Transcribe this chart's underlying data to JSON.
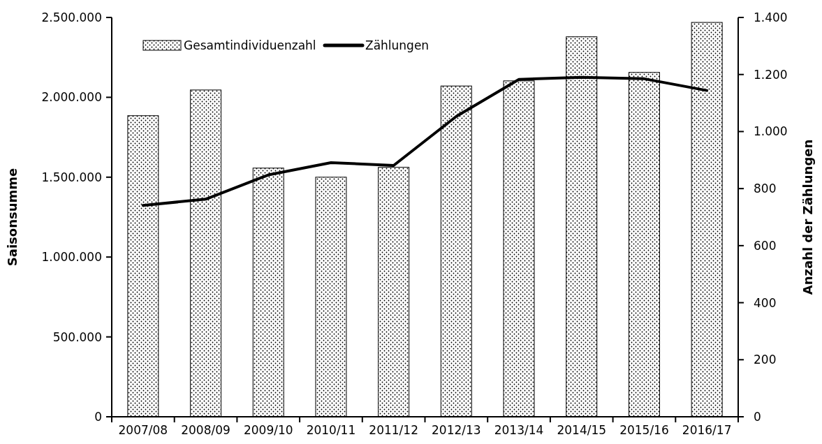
{
  "chart_data": {
    "type": "bar",
    "categories": [
      "2007/08",
      "2008/09",
      "2009/10",
      "2010/11",
      "2011/12",
      "2012/13",
      "2013/14",
      "2014/15",
      "2015/16",
      "2016/17"
    ],
    "series": [
      {
        "name": "Gesamtindividuenzahl",
        "color": "#000000",
        "values": [
          1885000,
          2046000,
          1557000,
          1500000,
          1562000,
          2071000,
          2103000,
          2379000,
          2156000,
          2469000
        ]
      },
      {
        "name": "Zählungen",
        "type": "line",
        "axis": "y2",
        "color": "#000000",
        "values": [
          741,
          763,
          848,
          891,
          881,
          1053,
          1183,
          1190,
          1185,
          1144
        ]
      }
    ],
    "ylabel": "Saisonsumme",
    "y2label": "Anzahl der Zählungen",
    "ylim": [
      0,
      2500000
    ],
    "yticks": [
      0,
      {
        "value": 500000,
        "label": "500.000"
      },
      {
        "value": 1000000,
        "label": "1.000.000"
      },
      {
        "value": 1500000,
        "label": "1.500.000"
      },
      {
        "value": 2000000,
        "label": "2.000.000"
      },
      {
        "value": 2500000,
        "label": "2.500.000"
      }
    ],
    "y2lim": [
      0,
      1400
    ],
    "y2ticks": [
      0,
      200,
      400,
      600,
      800,
      {
        "value": 1000,
        "label": "1.000"
      },
      {
        "value": 1200,
        "label": "1.200"
      },
      {
        "value": 1400,
        "label": "1.400"
      }
    ],
    "grid": false,
    "legend": "top left",
    "marker": "none",
    "line_style": "solid"
  }
}
